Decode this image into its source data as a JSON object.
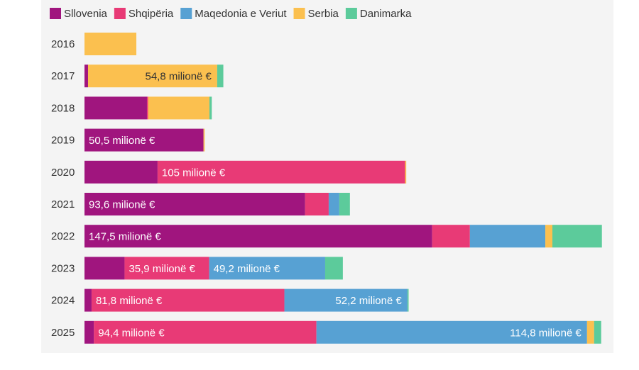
{
  "chart_data": {
    "type": "bar",
    "orientation": "horizontal",
    "stacked": true,
    "unit": "milionë €",
    "legend_position": "top-left",
    "grid": false,
    "xlim": [
      0,
      220
    ],
    "categories": [
      "2016",
      "2017",
      "2018",
      "2019",
      "2020",
      "2021",
      "2022",
      "2023",
      "2024",
      "2025"
    ],
    "series": [
      {
        "name": "Sllovenia",
        "color": "#a0157e",
        "values": [
          0,
          1.5,
          26.5,
          50.5,
          31.0,
          93.6,
          147.5,
          17.0,
          3.0,
          4.0
        ]
      },
      {
        "name": "Shqipëria",
        "color": "#e83a76",
        "values": [
          0,
          0,
          0.5,
          0,
          105.0,
          10.0,
          16.0,
          35.9,
          81.8,
          94.4
        ]
      },
      {
        "name": "Maqedonia e Veriut",
        "color": "#57a1d3",
        "values": [
          0,
          0,
          0,
          0,
          0,
          4.5,
          32.0,
          49.2,
          52.2,
          114.8
        ]
      },
      {
        "name": "Serbia",
        "color": "#fbc04f",
        "values": [
          22.0,
          54.8,
          26.0,
          0.5,
          0.5,
          0,
          3.0,
          0,
          0,
          3.0
        ]
      },
      {
        "name": "Danimarka",
        "color": "#5ccb9b",
        "values": [
          0,
          2.6,
          1.0,
          0,
          0,
          4.5,
          21.0,
          7.5,
          0.5,
          3.0
        ]
      }
    ],
    "data_labels": [
      {
        "category": "2017",
        "series": "Serbia",
        "text": "54,8 milionë €",
        "align": "right"
      },
      {
        "category": "2019",
        "series": "Sllovenia",
        "text": "50,5 milionë €",
        "align": "left"
      },
      {
        "category": "2020",
        "series": "Shqipëria",
        "text": "105 milionë €",
        "align": "left"
      },
      {
        "category": "2021",
        "series": "Sllovenia",
        "text": "93,6 milionë €",
        "align": "left"
      },
      {
        "category": "2022",
        "series": "Sllovenia",
        "text": "147,5 milionë €",
        "align": "left"
      },
      {
        "category": "2023",
        "series": "Shqipëria",
        "text": "35,9 milionë €",
        "align": "left"
      },
      {
        "category": "2023",
        "series": "Maqedonia e Veriut",
        "text": "49,2 milionë €",
        "align": "left"
      },
      {
        "category": "2024",
        "series": "Shqipëria",
        "text": "81,8 milionë €",
        "align": "left"
      },
      {
        "category": "2024",
        "series": "Maqedonia e Veriut",
        "text": "52,2 milionë €",
        "align": "right"
      },
      {
        "category": "2025",
        "series": "Shqipëria",
        "text": "94,4 milionë €",
        "align": "left"
      },
      {
        "category": "2025",
        "series": "Maqedonia e Veriut",
        "text": "114,8 milionë €",
        "align": "right"
      }
    ]
  }
}
